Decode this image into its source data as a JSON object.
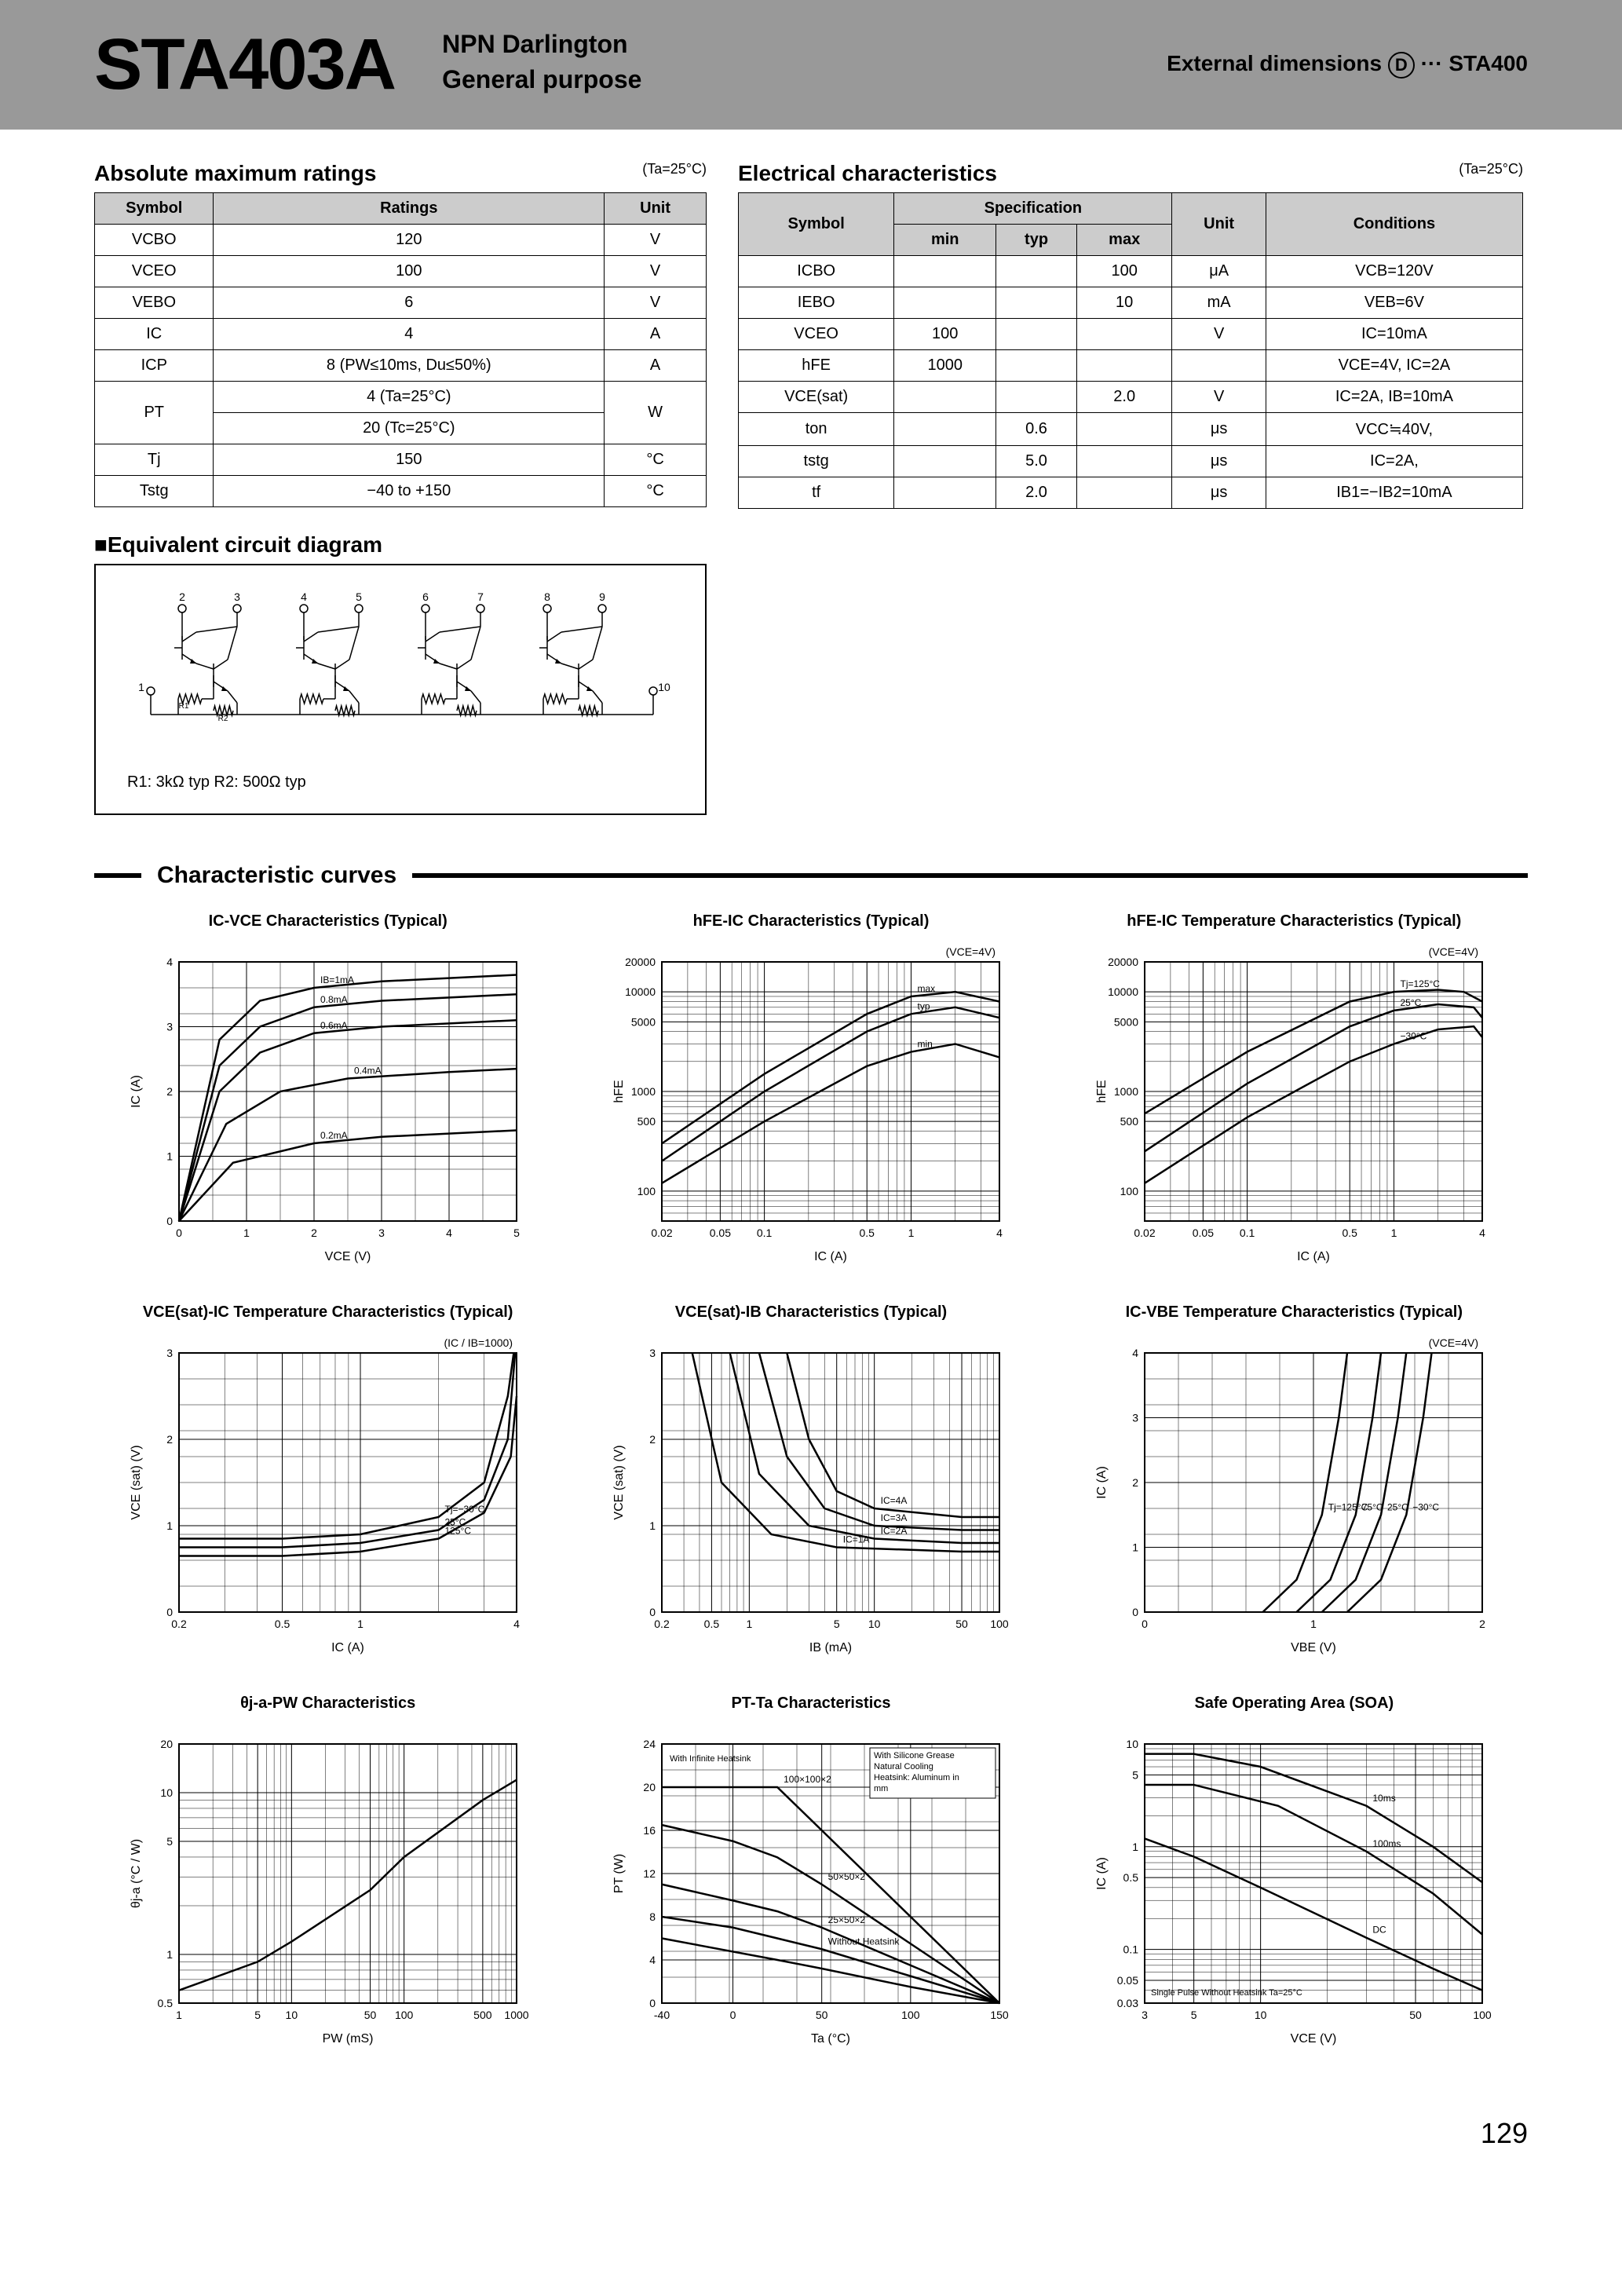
{
  "header": {
    "part_number": "STA403A",
    "type_line1": "NPN Darlington",
    "type_line2": "General purpose",
    "ext_dim_label": "External dimensions",
    "ext_dim_code": "D",
    "ext_dim_dots": "···",
    "ext_dim_ref": "STA400"
  },
  "abs": {
    "title": "Absolute maximum ratings",
    "ta_note": "(Ta=25°C)",
    "headers": [
      "Symbol",
      "Ratings",
      "Unit"
    ],
    "rows": [
      {
        "sym": "VCBO",
        "rating": "120",
        "unit": "V"
      },
      {
        "sym": "VCEO",
        "rating": "100",
        "unit": "V"
      },
      {
        "sym": "VEBO",
        "rating": "6",
        "unit": "V"
      },
      {
        "sym": "IC",
        "rating": "4",
        "unit": "A"
      },
      {
        "sym": "ICP",
        "rating": "8 (PW≤10ms, Du≤50%)",
        "unit": "A"
      }
    ],
    "pt_sym": "PT",
    "pt_r1": "4 (Ta=25°C)",
    "pt_r2": "20 (Tc=25°C)",
    "pt_unit": "W",
    "tail_rows": [
      {
        "sym": "Tj",
        "rating": "150",
        "unit": "°C"
      },
      {
        "sym": "Tstg",
        "rating": "−40 to +150",
        "unit": "°C"
      }
    ]
  },
  "elec": {
    "title": "Electrical characteristics",
    "ta_note": "(Ta=25°C)",
    "h_symbol": "Symbol",
    "h_spec": "Specification",
    "h_min": "min",
    "h_typ": "typ",
    "h_max": "max",
    "h_unit": "Unit",
    "h_cond": "Conditions",
    "rows": [
      {
        "sym": "ICBO",
        "min": "",
        "typ": "",
        "max": "100",
        "unit": "μA",
        "cond": "VCB=120V"
      },
      {
        "sym": "IEBO",
        "min": "",
        "typ": "",
        "max": "10",
        "unit": "mA",
        "cond": "VEB=6V"
      },
      {
        "sym": "VCEO",
        "min": "100",
        "typ": "",
        "max": "",
        "unit": "V",
        "cond": "IC=10mA"
      },
      {
        "sym": "hFE",
        "min": "1000",
        "typ": "",
        "max": "",
        "unit": "",
        "cond": "VCE=4V, IC=2A"
      },
      {
        "sym": "VCE(sat)",
        "min": "",
        "typ": "",
        "max": "2.0",
        "unit": "V",
        "cond": "IC=2A, IB=10mA"
      },
      {
        "sym": "ton",
        "min": "",
        "typ": "0.6",
        "max": "",
        "unit": "μs",
        "cond": "VCC≒40V,"
      },
      {
        "sym": "tstg",
        "min": "",
        "typ": "5.0",
        "max": "",
        "unit": "μs",
        "cond": "IC=2A,"
      },
      {
        "sym": "tf",
        "min": "",
        "typ": "2.0",
        "max": "",
        "unit": "μs",
        "cond": "IB1=−IB2=10mA"
      }
    ]
  },
  "circuit": {
    "title": "■Equivalent circuit diagram",
    "note": "R1: 3kΩ typ  R2: 500Ω typ",
    "pins": [
      "1",
      "2",
      "3",
      "4",
      "5",
      "6",
      "7",
      "8",
      "9",
      "10"
    ],
    "r1_label": "R1",
    "r2_label": "R2"
  },
  "curves": {
    "section_title": "Characteristic curves"
  },
  "chart1": {
    "title": "IC-VCE Characteristics (Typical)",
    "xlabel": "VCE  (V)",
    "ylabel": "IC  (A)",
    "xlim": [
      0,
      5
    ],
    "ylim": [
      0,
      4
    ],
    "xticks": [
      0,
      1,
      2,
      3,
      4,
      5
    ],
    "yticks": [
      0,
      1,
      2,
      3,
      4
    ],
    "series_labels": [
      "IB=1mA",
      "0.8mA",
      "0.6mA",
      "0.4mA",
      "0.2mA"
    ],
    "curves": [
      [
        [
          0,
          0
        ],
        [
          0.6,
          2.8
        ],
        [
          1.2,
          3.4
        ],
        [
          2,
          3.6
        ],
        [
          3,
          3.7
        ],
        [
          5,
          3.8
        ]
      ],
      [
        [
          0,
          0
        ],
        [
          0.6,
          2.4
        ],
        [
          1.2,
          3.0
        ],
        [
          2,
          3.3
        ],
        [
          3,
          3.4
        ],
        [
          5,
          3.5
        ]
      ],
      [
        [
          0,
          0
        ],
        [
          0.6,
          2.0
        ],
        [
          1.2,
          2.6
        ],
        [
          2,
          2.9
        ],
        [
          3,
          3.0
        ],
        [
          5,
          3.1
        ]
      ],
      [
        [
          0,
          0
        ],
        [
          0.7,
          1.5
        ],
        [
          1.5,
          2.0
        ],
        [
          2.5,
          2.2
        ],
        [
          4,
          2.3
        ],
        [
          5,
          2.35
        ]
      ],
      [
        [
          0,
          0
        ],
        [
          0.8,
          0.9
        ],
        [
          2,
          1.2
        ],
        [
          3,
          1.3
        ],
        [
          5,
          1.4
        ]
      ]
    ],
    "bg": "#ffffff",
    "grid": "#000000",
    "line_color": "#000000"
  },
  "chart2": {
    "title": "hFE-IC Characteristics (Typical)",
    "note": "(VCE=4V)",
    "xlabel": "IC  (A)",
    "ylabel": "hFE",
    "xscale": "log",
    "yscale": "log",
    "xlim": [
      0.02,
      4
    ],
    "ylim": [
      50,
      20000
    ],
    "xticks": [
      0.02,
      0.05,
      0.1,
      0.5,
      1,
      4
    ],
    "yticks": [
      100,
      500,
      1000,
      5000,
      10000,
      20000
    ],
    "series_labels": [
      "max",
      "typ",
      "min"
    ],
    "curves": [
      [
        [
          0.02,
          300
        ],
        [
          0.1,
          1500
        ],
        [
          0.5,
          6000
        ],
        [
          1,
          9000
        ],
        [
          2,
          10000
        ],
        [
          4,
          8000
        ]
      ],
      [
        [
          0.02,
          200
        ],
        [
          0.1,
          1000
        ],
        [
          0.5,
          4000
        ],
        [
          1,
          6000
        ],
        [
          2,
          7000
        ],
        [
          4,
          5500
        ]
      ],
      [
        [
          0.02,
          120
        ],
        [
          0.1,
          500
        ],
        [
          0.5,
          1800
        ],
        [
          1,
          2500
        ],
        [
          2,
          3000
        ],
        [
          4,
          2200
        ]
      ]
    ]
  },
  "chart3": {
    "title": "hFE-IC Temperature Characteristics (Typical)",
    "note": "(VCE=4V)",
    "xlabel": "IC  (A)",
    "ylabel": "hFE",
    "xscale": "log",
    "yscale": "log",
    "xlim": [
      0.02,
      4
    ],
    "ylim": [
      50,
      20000
    ],
    "xticks": [
      0.02,
      0.05,
      0.1,
      0.5,
      1,
      4
    ],
    "yticks": [
      100,
      500,
      1000,
      5000,
      10000,
      20000
    ],
    "series_labels": [
      "Tj=125°C",
      "25°C",
      "−30°C"
    ],
    "curves": [
      [
        [
          0.02,
          600
        ],
        [
          0.1,
          2500
        ],
        [
          0.5,
          8000
        ],
        [
          1,
          10000
        ],
        [
          2,
          10500
        ],
        [
          3,
          10000
        ],
        [
          4,
          8000
        ]
      ],
      [
        [
          0.02,
          250
        ],
        [
          0.1,
          1200
        ],
        [
          0.5,
          4500
        ],
        [
          1,
          6500
        ],
        [
          2,
          7500
        ],
        [
          3.5,
          7000
        ],
        [
          4,
          5500
        ]
      ],
      [
        [
          0.02,
          120
        ],
        [
          0.1,
          550
        ],
        [
          0.5,
          2000
        ],
        [
          1,
          3000
        ],
        [
          2,
          4200
        ],
        [
          3.5,
          4500
        ],
        [
          4,
          3500
        ]
      ]
    ]
  },
  "chart4": {
    "title": "VCE(sat)-IC Temperature Characteristics (Typical)",
    "note": "(IC / IB=1000)",
    "xlabel": "IC  (A)",
    "ylabel": "VCE (sat)  (V)",
    "xscale": "log",
    "xlim": [
      0.2,
      4
    ],
    "ylim": [
      0,
      3
    ],
    "xticks": [
      0.2,
      0.5,
      1,
      4
    ],
    "yticks": [
      0,
      1,
      2,
      3
    ],
    "series_labels": [
      "Tj=−30°C",
      "25°C",
      "125°C"
    ],
    "curves": [
      [
        [
          0.2,
          0.85
        ],
        [
          0.5,
          0.85
        ],
        [
          1,
          0.9
        ],
        [
          2,
          1.1
        ],
        [
          3,
          1.5
        ],
        [
          3.7,
          2.5
        ],
        [
          3.9,
          3
        ]
      ],
      [
        [
          0.2,
          0.75
        ],
        [
          0.5,
          0.75
        ],
        [
          1,
          0.8
        ],
        [
          2,
          0.95
        ],
        [
          3,
          1.3
        ],
        [
          3.7,
          2.0
        ],
        [
          3.95,
          3
        ]
      ],
      [
        [
          0.2,
          0.65
        ],
        [
          0.5,
          0.65
        ],
        [
          1,
          0.7
        ],
        [
          2,
          0.85
        ],
        [
          3,
          1.15
        ],
        [
          3.8,
          1.8
        ],
        [
          4,
          2.5
        ]
      ]
    ]
  },
  "chart5": {
    "title": "VCE(sat)-IB Characteristics (Typical)",
    "xlabel": "IB  (mA)",
    "ylabel": "VCE (sat)  (V)",
    "xscale": "log",
    "xlim": [
      0.2,
      100
    ],
    "ylim": [
      0,
      3
    ],
    "xticks": [
      0.2,
      0.5,
      1,
      5,
      10,
      50,
      100
    ],
    "yticks": [
      0,
      1,
      2,
      3
    ],
    "series_labels": [
      "IC=4A",
      "IC=3A",
      "IC=2A",
      "IC=1A"
    ],
    "curves": [
      [
        [
          2,
          3
        ],
        [
          3,
          2.0
        ],
        [
          5,
          1.4
        ],
        [
          10,
          1.2
        ],
        [
          50,
          1.1
        ],
        [
          100,
          1.1
        ]
      ],
      [
        [
          1.2,
          3
        ],
        [
          2,
          1.8
        ],
        [
          4,
          1.2
        ],
        [
          10,
          1.0
        ],
        [
          50,
          0.95
        ],
        [
          100,
          0.95
        ]
      ],
      [
        [
          0.7,
          3
        ],
        [
          1.2,
          1.6
        ],
        [
          3,
          1.0
        ],
        [
          10,
          0.85
        ],
        [
          50,
          0.8
        ],
        [
          100,
          0.8
        ]
      ],
      [
        [
          0.35,
          3
        ],
        [
          0.6,
          1.5
        ],
        [
          1.5,
          0.9
        ],
        [
          5,
          0.75
        ],
        [
          50,
          0.7
        ],
        [
          100,
          0.7
        ]
      ]
    ]
  },
  "chart6": {
    "title": "IC-VBE Temperature Characteristics (Typical)",
    "note": "(VCE=4V)",
    "xlabel": "VBE  (V)",
    "ylabel": "IC  (A)",
    "xlim": [
      0,
      2
    ],
    "ylim": [
      0,
      4
    ],
    "xticks": [
      0,
      1,
      2
    ],
    "yticks": [
      0,
      1,
      2,
      3,
      4
    ],
    "series_labels": [
      "Tj=125°C",
      "75°C",
      "25°C",
      "−30°C"
    ],
    "curves": [
      [
        [
          0.7,
          0
        ],
        [
          0.9,
          0.5
        ],
        [
          1.05,
          1.5
        ],
        [
          1.15,
          3
        ],
        [
          1.2,
          4
        ]
      ],
      [
        [
          0.9,
          0
        ],
        [
          1.1,
          0.5
        ],
        [
          1.25,
          1.5
        ],
        [
          1.35,
          3
        ],
        [
          1.4,
          4
        ]
      ],
      [
        [
          1.05,
          0
        ],
        [
          1.25,
          0.5
        ],
        [
          1.4,
          1.5
        ],
        [
          1.5,
          3
        ],
        [
          1.55,
          4
        ]
      ],
      [
        [
          1.2,
          0
        ],
        [
          1.4,
          0.5
        ],
        [
          1.55,
          1.5
        ],
        [
          1.65,
          3
        ],
        [
          1.7,
          4
        ]
      ]
    ]
  },
  "chart7": {
    "title": "θj-a-PW Characteristics",
    "xlabel": "PW  (mS)",
    "ylabel": "θj-a  (°C / W)",
    "xscale": "log",
    "yscale": "log",
    "xlim": [
      1,
      1000
    ],
    "ylim": [
      0.5,
      20
    ],
    "xticks": [
      1,
      5,
      10,
      50,
      100,
      500,
      1000
    ],
    "yticks": [
      0.5,
      1.0,
      5,
      10,
      20
    ],
    "curves": [
      [
        [
          1,
          0.6
        ],
        [
          5,
          0.9
        ],
        [
          10,
          1.2
        ],
        [
          50,
          2.5
        ],
        [
          100,
          4
        ],
        [
          500,
          9
        ],
        [
          1000,
          12
        ]
      ]
    ]
  },
  "chart8": {
    "title": "PT-Ta Characteristics",
    "xlabel": "Ta  (°C)",
    "ylabel": "PT  (W)",
    "xlim": [
      -40,
      150
    ],
    "ylim": [
      0,
      24
    ],
    "xticks": [
      -40,
      0,
      50,
      100,
      150
    ],
    "yticks": [
      0,
      4.0,
      8.0,
      12,
      16,
      20,
      24
    ],
    "legend1": "With Infinite Heatsink",
    "legend2": "With Silicone Grease Natural Cooling Heatsink: Aluminum in mm",
    "series_labels": [
      "100×100×2",
      "50×50×2",
      "25×50×2",
      "Without Heatsink"
    ],
    "curves": [
      [
        [
          -40,
          20
        ],
        [
          25,
          20
        ],
        [
          150,
          0
        ]
      ],
      [
        [
          -40,
          16.5
        ],
        [
          0,
          15
        ],
        [
          25,
          13.5
        ],
        [
          50,
          11
        ],
        [
          100,
          5.5
        ],
        [
          150,
          0
        ]
      ],
      [
        [
          -40,
          11
        ],
        [
          0,
          9.5
        ],
        [
          25,
          8.5
        ],
        [
          50,
          7
        ],
        [
          100,
          3.5
        ],
        [
          150,
          0
        ]
      ],
      [
        [
          -40,
          8
        ],
        [
          0,
          7
        ],
        [
          25,
          6
        ],
        [
          50,
          5
        ],
        [
          100,
          2.5
        ],
        [
          150,
          0
        ]
      ],
      [
        [
          -40,
          6
        ],
        [
          25,
          4
        ],
        [
          50,
          3.2
        ],
        [
          100,
          1.5
        ],
        [
          150,
          0
        ]
      ]
    ]
  },
  "chart9": {
    "title": "Safe Operating Area (SOA)",
    "xlabel": "VCE  (V)",
    "ylabel": "IC  (A)",
    "xscale": "log",
    "yscale": "log",
    "xlim": [
      3,
      100
    ],
    "ylim": [
      0.03,
      10
    ],
    "xticks": [
      3,
      5,
      10,
      50,
      100
    ],
    "yticks": [
      0.03,
      0.05,
      0.1,
      0.5,
      1,
      5,
      10
    ],
    "legend": "Single Pulse Without Heatsink Ta=25°C",
    "series_labels": [
      "10ms",
      "100ms",
      "DC"
    ],
    "curves": [
      [
        [
          3,
          8
        ],
        [
          5,
          8
        ],
        [
          10,
          6
        ],
        [
          30,
          2.5
        ],
        [
          60,
          1.0
        ],
        [
          100,
          0.45
        ]
      ],
      [
        [
          3,
          4
        ],
        [
          5,
          4
        ],
        [
          12,
          2.5
        ],
        [
          30,
          0.9
        ],
        [
          60,
          0.35
        ],
        [
          100,
          0.14
        ]
      ],
      [
        [
          3,
          1.2
        ],
        [
          5,
          0.8
        ],
        [
          10,
          0.4
        ],
        [
          30,
          0.13
        ],
        [
          60,
          0.065
        ],
        [
          100,
          0.04
        ]
      ]
    ]
  },
  "page_num": "129"
}
